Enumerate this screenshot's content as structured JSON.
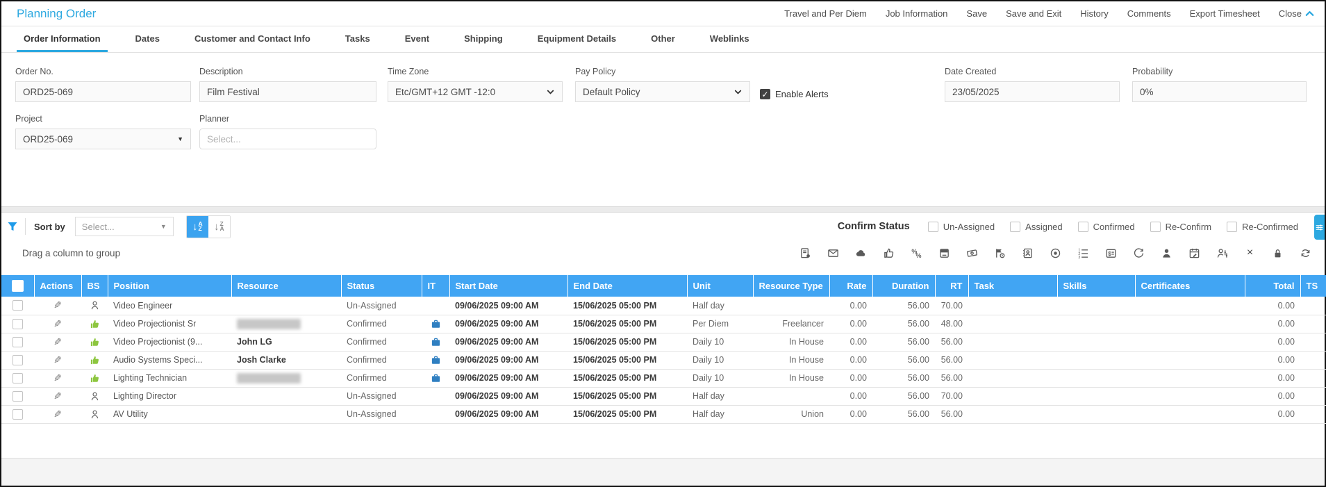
{
  "header": {
    "title": "Planning Order",
    "menu": [
      {
        "label": "Travel and Per Diem"
      },
      {
        "label": "Job Information"
      },
      {
        "label": "Save"
      },
      {
        "label": "Save and Exit"
      },
      {
        "label": "History"
      },
      {
        "label": "Comments"
      },
      {
        "label": "Export Timesheet"
      },
      {
        "label": "Close"
      }
    ],
    "collapse_icon": "chevron-up-icon"
  },
  "tabs": {
    "active": "Order Information",
    "items": [
      {
        "label": "Order Information"
      },
      {
        "label": "Dates"
      },
      {
        "label": "Customer and Contact Info"
      },
      {
        "label": "Tasks"
      },
      {
        "label": "Event"
      },
      {
        "label": "Shipping"
      },
      {
        "label": "Equipment Details"
      },
      {
        "label": "Other"
      },
      {
        "label": "Weblinks"
      }
    ]
  },
  "form": {
    "fields": {
      "order_no": {
        "label": "Order No.",
        "value": "ORD25-069"
      },
      "description": {
        "label": "Description",
        "value": "Film Festival"
      },
      "time_zone": {
        "label": "Time Zone",
        "value": "Etc/GMT+12 GMT -12:0"
      },
      "pay_policy": {
        "label": "Pay Policy",
        "value": "Default Policy"
      },
      "enable_alerts": {
        "label": "Enable Alerts",
        "checked": true
      },
      "date_created": {
        "label": "Date Created",
        "value": "23/05/2025"
      },
      "probability": {
        "label": "Probability",
        "value": "0%"
      },
      "project": {
        "label": "Project",
        "value": "ORD25-069"
      },
      "planner": {
        "label": "Planner",
        "placeholder": "Select..."
      }
    }
  },
  "grid_toolbar": {
    "sort_label": "Sort by",
    "sort_placeholder": "Select...",
    "sort_asc": {
      "top": "A",
      "bottom": "Z"
    },
    "sort_desc": {
      "top": "Z",
      "bottom": "A"
    },
    "confirm_status_label": "Confirm Status",
    "status_filters": [
      {
        "label": "Un-Assigned",
        "checked": false
      },
      {
        "label": "Assigned",
        "checked": false
      },
      {
        "label": "Confirmed",
        "checked": false
      },
      {
        "label": "Re-Confirm",
        "checked": false
      },
      {
        "label": "Re-Confirmed",
        "checked": false
      }
    ],
    "group_hint": "Drag a column to group",
    "action_icons": [
      "assignment-notes-icon",
      "email-check-icon",
      "cloud-icon",
      "thumbs-up-icon",
      "percentage-icon",
      "card-terminal-icon",
      "cash-icon",
      "time-flag-icon",
      "contacts-icon",
      "target-icon",
      "ordered-list-icon",
      "rate-card-icon",
      "sync-icon",
      "person-icon",
      "calendar-edit-icon",
      "person-settings-icon",
      "close-x-icon",
      "lock-icon",
      "refresh-icon"
    ]
  },
  "table": {
    "columns": [
      {
        "key": "sel",
        "label": ""
      },
      {
        "key": "actions",
        "label": "Actions"
      },
      {
        "key": "bs",
        "label": "BS"
      },
      {
        "key": "position",
        "label": "Position"
      },
      {
        "key": "resource",
        "label": "Resource"
      },
      {
        "key": "status",
        "label": "Status"
      },
      {
        "key": "it",
        "label": "IT"
      },
      {
        "key": "start_date",
        "label": "Start Date"
      },
      {
        "key": "end_date",
        "label": "End Date"
      },
      {
        "key": "unit",
        "label": "Unit"
      },
      {
        "key": "resource_type",
        "label": "Resource Type"
      },
      {
        "key": "rate",
        "label": "Rate"
      },
      {
        "key": "duration",
        "label": "Duration"
      },
      {
        "key": "rt",
        "label": "RT"
      },
      {
        "key": "task",
        "label": "Task"
      },
      {
        "key": "skills",
        "label": "Skills"
      },
      {
        "key": "certificates",
        "label": "Certificates"
      },
      {
        "key": "total",
        "label": "Total"
      },
      {
        "key": "ts",
        "label": "TS"
      }
    ],
    "rows": [
      {
        "bs_icon": "person-outline-icon",
        "position": "Video Engineer",
        "resource": "",
        "resource_redacted": false,
        "status": "Un-Assigned",
        "it_briefcase": false,
        "start_date": "09/06/2025 09:00 AM",
        "end_date": "15/06/2025 05:00 PM",
        "unit": "Half day",
        "resource_type": "",
        "rate": "0.00",
        "duration": "56.00",
        "rt": "70.00",
        "task": "",
        "skills": "",
        "certificates": "",
        "total": "0.00",
        "ts": ""
      },
      {
        "bs_icon": "thumbs-up-icon",
        "position": "Video Projectionist Sr",
        "resource": "",
        "resource_redacted": true,
        "status": "Confirmed",
        "it_briefcase": true,
        "start_date": "09/06/2025 09:00 AM",
        "end_date": "15/06/2025 05:00 PM",
        "unit": "Per Diem",
        "resource_type": "Freelancer",
        "rate": "0.00",
        "duration": "56.00",
        "rt": "48.00",
        "task": "",
        "skills": "",
        "certificates": "",
        "total": "0.00",
        "ts": ""
      },
      {
        "bs_icon": "thumbs-up-icon",
        "position": "Video Projectionist (9...",
        "resource": "John LG",
        "resource_redacted": false,
        "status": "Confirmed",
        "it_briefcase": true,
        "start_date": "09/06/2025 09:00 AM",
        "end_date": "15/06/2025 05:00 PM",
        "unit": "Daily 10",
        "resource_type": "In House",
        "rate": "0.00",
        "duration": "56.00",
        "rt": "56.00",
        "task": "",
        "skills": "",
        "certificates": "",
        "total": "0.00",
        "ts": ""
      },
      {
        "bs_icon": "thumbs-up-icon",
        "position": "Audio Systems Speci...",
        "resource": "Josh Clarke",
        "resource_redacted": false,
        "status": "Confirmed",
        "it_briefcase": true,
        "start_date": "09/06/2025 09:00 AM",
        "end_date": "15/06/2025 05:00 PM",
        "unit": "Daily 10",
        "resource_type": "In House",
        "rate": "0.00",
        "duration": "56.00",
        "rt": "56.00",
        "task": "",
        "skills": "",
        "certificates": "",
        "total": "0.00",
        "ts": ""
      },
      {
        "bs_icon": "thumbs-up-icon",
        "position": "Lighting Technician",
        "resource": "",
        "resource_redacted": true,
        "status": "Confirmed",
        "it_briefcase": true,
        "start_date": "09/06/2025 09:00 AM",
        "end_date": "15/06/2025 05:00 PM",
        "unit": "Daily 10",
        "resource_type": "In House",
        "rate": "0.00",
        "duration": "56.00",
        "rt": "56.00",
        "task": "",
        "skills": "",
        "certificates": "",
        "total": "0.00",
        "ts": ""
      },
      {
        "bs_icon": "person-outline-icon",
        "position": "Lighting Director",
        "resource": "",
        "resource_redacted": false,
        "status": "Un-Assigned",
        "it_briefcase": false,
        "start_date": "09/06/2025 09:00 AM",
        "end_date": "15/06/2025 05:00 PM",
        "unit": "Half day",
        "resource_type": "",
        "rate": "0.00",
        "duration": "56.00",
        "rt": "70.00",
        "task": "",
        "skills": "",
        "certificates": "",
        "total": "0.00",
        "ts": ""
      },
      {
        "bs_icon": "person-outline-icon",
        "position": "AV Utility",
        "resource": "",
        "resource_redacted": false,
        "status": "Un-Assigned",
        "it_briefcase": false,
        "start_date": "09/06/2025 09:00 AM",
        "end_date": "15/06/2025 05:00 PM",
        "unit": "Half day",
        "resource_type": "Union",
        "rate": "0.00",
        "duration": "56.00",
        "rt": "56.00",
        "task": "",
        "skills": "",
        "certificates": "",
        "total": "0.00",
        "ts": ""
      }
    ]
  }
}
